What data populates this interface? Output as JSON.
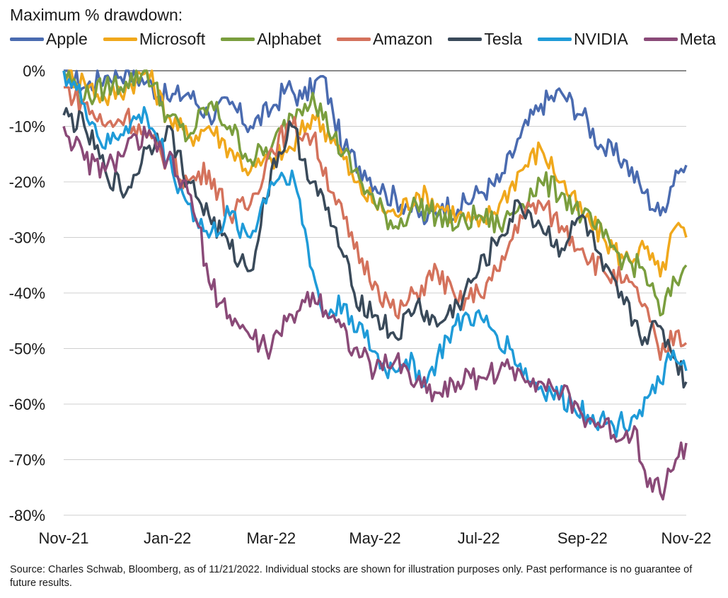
{
  "chart_data": {
    "type": "line",
    "title": "Maximum % drawdown:",
    "ylabel": "",
    "xlabel": "",
    "ylim": [
      -80,
      0
    ],
    "yticks": [
      0,
      -10,
      -20,
      -30,
      -40,
      -50,
      -60,
      -70,
      -80
    ],
    "ytick_labels": [
      "0%",
      "-10%",
      "-20%",
      "-30%",
      "-40%",
      "-50%",
      "-60%",
      "-70%",
      "-80%"
    ],
    "xticks": [
      0,
      2,
      4,
      6,
      8,
      10,
      12
    ],
    "xtick_labels": [
      "Nov-21",
      "Jan-22",
      "Mar-22",
      "May-22",
      "Jul-22",
      "Sep-22",
      "Nov-22"
    ],
    "xlim": [
      0,
      12
    ],
    "grid": true,
    "legend_position": "top",
    "x_unit": "months since Nov-21",
    "series": [
      {
        "name": "Apple",
        "color": "#4a6bb0",
        "x": [
          0,
          0.4,
          0.8,
          1.2,
          1.6,
          2.0,
          2.4,
          2.8,
          3.2,
          3.6,
          4.0,
          4.3,
          4.6,
          5.0,
          5.2,
          5.4,
          5.8,
          6.2,
          6.6,
          7.0,
          7.3,
          7.6,
          8.0,
          8.4,
          8.8,
          9.2,
          9.6,
          10.0,
          10.4,
          10.8,
          11.2,
          11.5,
          11.8,
          12.0
        ],
        "y": [
          0,
          -3,
          -1,
          0,
          -2,
          -5,
          -4,
          -8,
          -6,
          -10,
          -7,
          -3,
          -5,
          -1,
          -8,
          -14,
          -18,
          -22,
          -24,
          -27,
          -24,
          -25,
          -22,
          -20,
          -12,
          -6,
          -4,
          -8,
          -14,
          -16,
          -22,
          -26,
          -18,
          -17
        ]
      },
      {
        "name": "Microsoft",
        "color": "#f0a81c",
        "x": [
          0,
          0.4,
          0.8,
          1.2,
          1.6,
          2.0,
          2.4,
          2.8,
          3.2,
          3.6,
          4.0,
          4.4,
          4.8,
          5.2,
          5.6,
          6.0,
          6.4,
          6.8,
          7.2,
          7.6,
          8.0,
          8.4,
          8.8,
          9.2,
          9.6,
          10.0,
          10.4,
          10.8,
          11.2,
          11.5,
          11.8,
          12.0
        ],
        "y": [
          0,
          -2,
          -5,
          -3,
          0,
          -8,
          -12,
          -10,
          -14,
          -18,
          -16,
          -14,
          -8,
          -12,
          -20,
          -24,
          -26,
          -22,
          -24,
          -26,
          -28,
          -24,
          -18,
          -14,
          -20,
          -26,
          -30,
          -34,
          -32,
          -37,
          -28,
          -30
        ]
      },
      {
        "name": "Alphabet",
        "color": "#7a9e3e",
        "x": [
          0,
          0.4,
          0.8,
          1.2,
          1.6,
          2.0,
          2.4,
          2.8,
          3.2,
          3.6,
          4.0,
          4.4,
          4.8,
          5.2,
          5.6,
          6.0,
          6.4,
          6.8,
          7.2,
          7.6,
          8.0,
          8.4,
          8.8,
          9.2,
          9.6,
          10.0,
          10.4,
          10.8,
          11.2,
          11.5,
          11.8,
          12.0
        ],
        "y": [
          0,
          -5,
          -3,
          -2,
          0,
          -8,
          -12,
          -6,
          -10,
          -16,
          -14,
          -8,
          -4,
          -12,
          -18,
          -24,
          -28,
          -24,
          -26,
          -28,
          -26,
          -28,
          -24,
          -20,
          -22,
          -26,
          -30,
          -34,
          -36,
          -44,
          -38,
          -35
        ]
      },
      {
        "name": "Amazon",
        "color": "#d4725c",
        "x": [
          0,
          0.4,
          0.8,
          1.2,
          1.6,
          2.0,
          2.4,
          2.8,
          3.2,
          3.6,
          4.0,
          4.4,
          4.8,
          5.2,
          5.6,
          6.0,
          6.4,
          6.8,
          7.2,
          7.6,
          8.0,
          8.4,
          8.8,
          9.2,
          9.6,
          10.0,
          10.4,
          10.8,
          11.2,
          11.5,
          11.8,
          12.0
        ],
        "y": [
          -3,
          -6,
          -10,
          -8,
          -12,
          -16,
          -20,
          -18,
          -26,
          -24,
          -14,
          -10,
          -12,
          -22,
          -32,
          -38,
          -44,
          -40,
          -36,
          -42,
          -40,
          -36,
          -26,
          -24,
          -28,
          -32,
          -36,
          -38,
          -42,
          -52,
          -47,
          -49
        ]
      },
      {
        "name": "Tesla",
        "color": "#3a4a5a",
        "x": [
          0,
          0.4,
          0.8,
          1.2,
          1.6,
          2.0,
          2.4,
          2.8,
          3.2,
          3.6,
          4.0,
          4.4,
          4.8,
          5.2,
          5.6,
          6.0,
          6.4,
          6.8,
          7.2,
          7.6,
          8.0,
          8.4,
          8.8,
          9.2,
          9.6,
          10.0,
          10.4,
          10.8,
          11.2,
          11.5,
          11.8,
          12.0
        ],
        "y": [
          -8,
          -10,
          -18,
          -22,
          -14,
          -10,
          -20,
          -26,
          -32,
          -36,
          -18,
          -10,
          -20,
          -28,
          -40,
          -44,
          -48,
          -42,
          -46,
          -42,
          -36,
          -30,
          -24,
          -28,
          -32,
          -26,
          -36,
          -42,
          -48,
          -46,
          -52,
          -56
        ]
      },
      {
        "name": "NVIDIA",
        "color": "#1f9bd8",
        "x": [
          0,
          0.4,
          0.8,
          1.2,
          1.6,
          2.0,
          2.4,
          2.8,
          3.2,
          3.6,
          4.0,
          4.4,
          4.8,
          5.0,
          5.4,
          5.8,
          6.2,
          6.6,
          7.0,
          7.4,
          7.8,
          8.2,
          8.6,
          9.0,
          9.4,
          9.8,
          10.2,
          10.6,
          11.0,
          11.4,
          11.7,
          12.0
        ],
        "y": [
          0,
          -6,
          -14,
          -10,
          -8,
          -16,
          -24,
          -30,
          -26,
          -30,
          -20,
          -18,
          -36,
          -44,
          -42,
          -48,
          -54,
          -52,
          -56,
          -48,
          -44,
          -46,
          -50,
          -56,
          -58,
          -60,
          -62,
          -64,
          -62,
          -58,
          -52,
          -54
        ]
      },
      {
        "name": "Meta",
        "color": "#8a4a78",
        "x": [
          0,
          0.4,
          0.8,
          1.2,
          1.6,
          2.0,
          2.4,
          2.6,
          2.8,
          3.2,
          3.6,
          4.0,
          4.4,
          4.8,
          5.2,
          5.6,
          6.0,
          6.4,
          6.8,
          7.2,
          7.6,
          8.0,
          8.4,
          8.8,
          9.2,
          9.6,
          10.0,
          10.4,
          10.8,
          11.0,
          11.2,
          11.5,
          11.8,
          12.0
        ],
        "y": [
          -10,
          -16,
          -18,
          -14,
          -12,
          -16,
          -22,
          -28,
          -38,
          -44,
          -48,
          -50,
          -44,
          -40,
          -44,
          -50,
          -54,
          -52,
          -56,
          -58,
          -56,
          -55,
          -54,
          -54,
          -56,
          -58,
          -62,
          -64,
          -66,
          -64,
          -72,
          -76,
          -70,
          -67
        ]
      }
    ]
  },
  "source_note": "Source: Charles Schwab, Bloomberg, as of 11/21/2022. Individual stocks are shown for illustration purposes only. Past performance is no guarantee of future results."
}
